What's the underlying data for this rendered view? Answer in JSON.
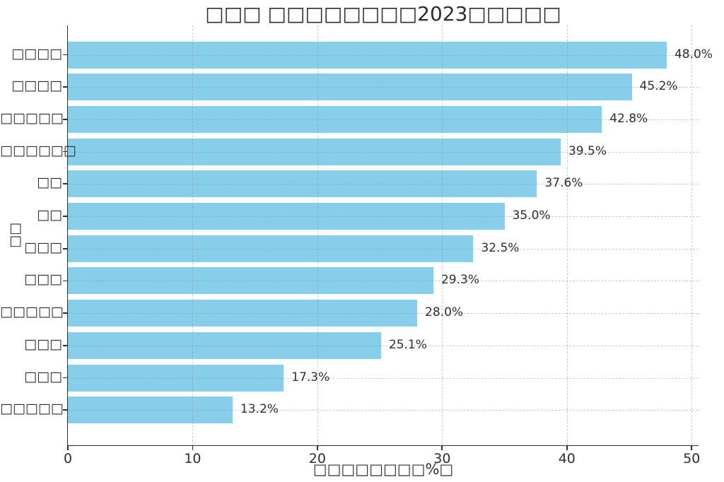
{
  "chart_data": {
    "type": "bar",
    "orientation": "horizontal",
    "title": "□□□ □□□□□□□□2023□□□□□",
    "xlabel": "□□□□□□□□%□",
    "ylabel": "□□",
    "categories": [
      "□□□□",
      "□□□□",
      "□□□□□",
      "□□□□□□",
      "□□",
      "□□",
      "□□□",
      "□□□",
      "□□□□□",
      "□□□",
      "□□□",
      "□□□□□"
    ],
    "values": [
      48.0,
      45.2,
      42.8,
      39.5,
      37.6,
      35.0,
      32.5,
      29.3,
      28.0,
      25.1,
      17.3,
      13.2
    ],
    "value_labels": [
      "48.0%",
      "45.2%",
      "42.8%",
      "39.5%",
      "37.6%",
      "35.0%",
      "32.5%",
      "29.3%",
      "28.0%",
      "25.1%",
      "17.3%",
      "13.2%"
    ],
    "x_ticks": [
      0,
      10,
      20,
      30,
      40,
      50
    ],
    "xlim": [
      0,
      50.6
    ],
    "grid": true,
    "legend": "none",
    "bar_color": "#87CEEB",
    "text_color": "#2e2e2e",
    "grid_color": "#c8c8c8",
    "background_color": "#ffffff"
  }
}
